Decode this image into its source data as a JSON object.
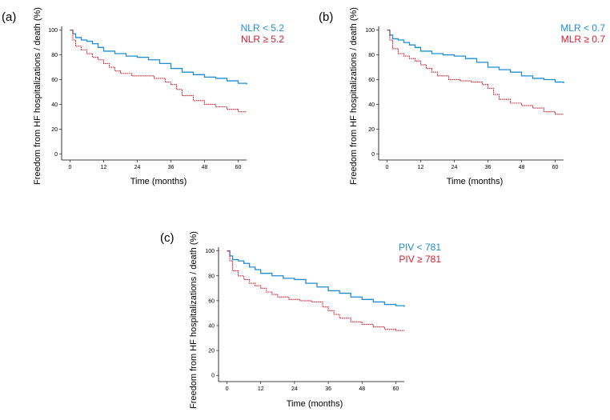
{
  "colors": {
    "blue": "#1f8dd6",
    "red": "#d11f2e"
  },
  "chart_data": [
    {
      "type": "line",
      "panel_label": "(a)",
      "xlabel": "Time (months)",
      "ylabel": "Freedom from HF hospitalizations / death (%)",
      "x_ticks": [
        0,
        12,
        24,
        36,
        48,
        60
      ],
      "y_ticks": [
        0,
        20,
        40,
        60,
        80,
        100
      ],
      "xlim": [
        -3,
        63
      ],
      "ylim": [
        -5,
        103
      ],
      "legend_position": "top-right",
      "series": [
        {
          "name": "NLR < 5.2",
          "color": "blue",
          "points": [
            [
              0,
              100
            ],
            [
              1,
              97
            ],
            [
              2,
              94
            ],
            [
              4,
              92
            ],
            [
              6,
              91
            ],
            [
              8,
              89
            ],
            [
              10,
              86
            ],
            [
              12,
              83
            ],
            [
              16,
              81
            ],
            [
              20,
              79
            ],
            [
              24,
              78
            ],
            [
              28,
              76
            ],
            [
              32,
              73
            ],
            [
              36,
              69
            ],
            [
              40,
              66
            ],
            [
              44,
              64
            ],
            [
              48,
              62
            ],
            [
              52,
              61
            ],
            [
              56,
              59
            ],
            [
              60,
              57
            ],
            [
              63,
              56
            ]
          ]
        },
        {
          "name": "NLR ≥ 5.2",
          "color": "red",
          "points": [
            [
              0,
              100
            ],
            [
              1,
              92
            ],
            [
              2,
              87
            ],
            [
              4,
              84
            ],
            [
              6,
              81
            ],
            [
              8,
              78
            ],
            [
              10,
              76
            ],
            [
              12,
              73
            ],
            [
              14,
              70
            ],
            [
              16,
              67
            ],
            [
              18,
              65
            ],
            [
              22,
              63
            ],
            [
              26,
              63
            ],
            [
              30,
              61
            ],
            [
              34,
              58
            ],
            [
              36,
              56
            ],
            [
              38,
              52
            ],
            [
              40,
              47
            ],
            [
              44,
              43
            ],
            [
              48,
              40
            ],
            [
              52,
              38
            ],
            [
              56,
              36
            ],
            [
              60,
              34
            ],
            [
              63,
              34
            ]
          ]
        }
      ]
    },
    {
      "type": "line",
      "panel_label": "(b)",
      "xlabel": "Time (months)",
      "ylabel": "Freedom from HF hospitalizations / death (%)",
      "x_ticks": [
        0,
        12,
        24,
        36,
        48,
        60
      ],
      "y_ticks": [
        0,
        20,
        40,
        60,
        80,
        100
      ],
      "xlim": [
        -3,
        63
      ],
      "ylim": [
        -5,
        103
      ],
      "legend_position": "top-right",
      "series": [
        {
          "name": "MLR < 0.7",
          "color": "blue",
          "points": [
            [
              0,
              100
            ],
            [
              1,
              96
            ],
            [
              2,
              93
            ],
            [
              4,
              92
            ],
            [
              6,
              90
            ],
            [
              8,
              88
            ],
            [
              10,
              86
            ],
            [
              12,
              83
            ],
            [
              16,
              81
            ],
            [
              20,
              80
            ],
            [
              24,
              79
            ],
            [
              28,
              77
            ],
            [
              32,
              74
            ],
            [
              36,
              70
            ],
            [
              40,
              68
            ],
            [
              44,
              66
            ],
            [
              48,
              63
            ],
            [
              52,
              61
            ],
            [
              56,
              60
            ],
            [
              60,
              58
            ],
            [
              63,
              57
            ]
          ]
        },
        {
          "name": "MLR ≥ 0.7",
          "color": "red",
          "points": [
            [
              0,
              100
            ],
            [
              1,
              92
            ],
            [
              2,
              85
            ],
            [
              4,
              81
            ],
            [
              6,
              79
            ],
            [
              8,
              77
            ],
            [
              10,
              75
            ],
            [
              12,
              72
            ],
            [
              14,
              69
            ],
            [
              16,
              66
            ],
            [
              18,
              63
            ],
            [
              22,
              60
            ],
            [
              26,
              59
            ],
            [
              30,
              58
            ],
            [
              34,
              56
            ],
            [
              36,
              53
            ],
            [
              38,
              48
            ],
            [
              40,
              44
            ],
            [
              44,
              41
            ],
            [
              48,
              39
            ],
            [
              52,
              37
            ],
            [
              56,
              34
            ],
            [
              60,
              32
            ],
            [
              63,
              32
            ]
          ]
        }
      ]
    },
    {
      "type": "line",
      "panel_label": "(c)",
      "xlabel": "Time (months)",
      "ylabel": "Freedom from HF hospitalizations / death (%)",
      "x_ticks": [
        0,
        12,
        24,
        36,
        48,
        60
      ],
      "y_ticks": [
        0,
        20,
        40,
        60,
        80,
        100
      ],
      "xlim": [
        -3,
        63
      ],
      "ylim": [
        -5,
        103
      ],
      "legend_position": "top-right",
      "series": [
        {
          "name": "PIV < 781",
          "color": "blue",
          "points": [
            [
              0,
              100
            ],
            [
              1,
              96
            ],
            [
              2,
              93
            ],
            [
              4,
              92
            ],
            [
              6,
              90
            ],
            [
              8,
              87
            ],
            [
              10,
              85
            ],
            [
              12,
              82
            ],
            [
              16,
              80
            ],
            [
              20,
              78
            ],
            [
              24,
              77
            ],
            [
              28,
              74
            ],
            [
              32,
              71
            ],
            [
              36,
              68
            ],
            [
              40,
              66
            ],
            [
              44,
              63
            ],
            [
              48,
              61
            ],
            [
              52,
              59
            ],
            [
              56,
              57
            ],
            [
              60,
              56
            ],
            [
              63,
              55
            ]
          ]
        },
        {
          "name": "PIV ≥ 781",
          "color": "red",
          "points": [
            [
              0,
              100
            ],
            [
              1,
              92
            ],
            [
              2,
              84
            ],
            [
              4,
              80
            ],
            [
              6,
              77
            ],
            [
              8,
              74
            ],
            [
              10,
              72
            ],
            [
              12,
              70
            ],
            [
              14,
              67
            ],
            [
              16,
              65
            ],
            [
              18,
              63
            ],
            [
              22,
              61
            ],
            [
              26,
              60
            ],
            [
              30,
              59
            ],
            [
              34,
              55
            ],
            [
              36,
              52
            ],
            [
              38,
              49
            ],
            [
              40,
              46
            ],
            [
              44,
              43
            ],
            [
              48,
              41
            ],
            [
              52,
              39
            ],
            [
              56,
              37
            ],
            [
              60,
              36
            ],
            [
              63,
              36
            ]
          ]
        }
      ]
    }
  ]
}
